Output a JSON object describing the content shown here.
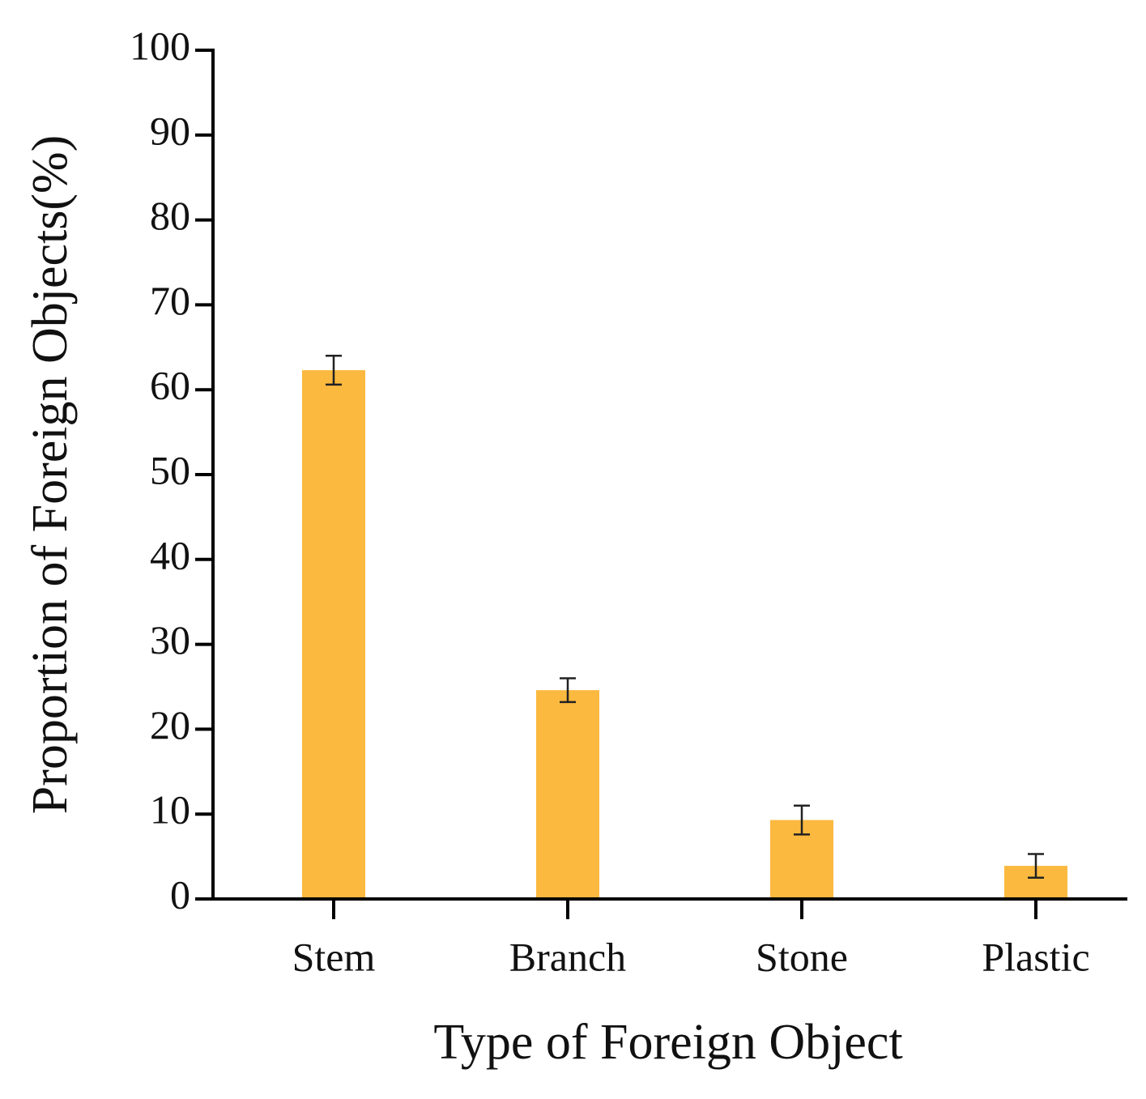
{
  "chart_data": {
    "type": "bar",
    "x_label": "Type of Foreign Object",
    "y_label": "Proportion of Foreign Objects(%)",
    "categories": [
      "Stem",
      "Branch",
      "Stone",
      "Plastic"
    ],
    "values": [
      62.3,
      24.6,
      9.3,
      3.9
    ],
    "errors": [
      1.7,
      1.4,
      1.7,
      1.4
    ],
    "color": "#fbb93f",
    "ylim": [
      0,
      100
    ],
    "yticks": [
      0,
      10,
      20,
      30,
      40,
      50,
      60,
      70,
      80,
      90,
      100
    ]
  }
}
